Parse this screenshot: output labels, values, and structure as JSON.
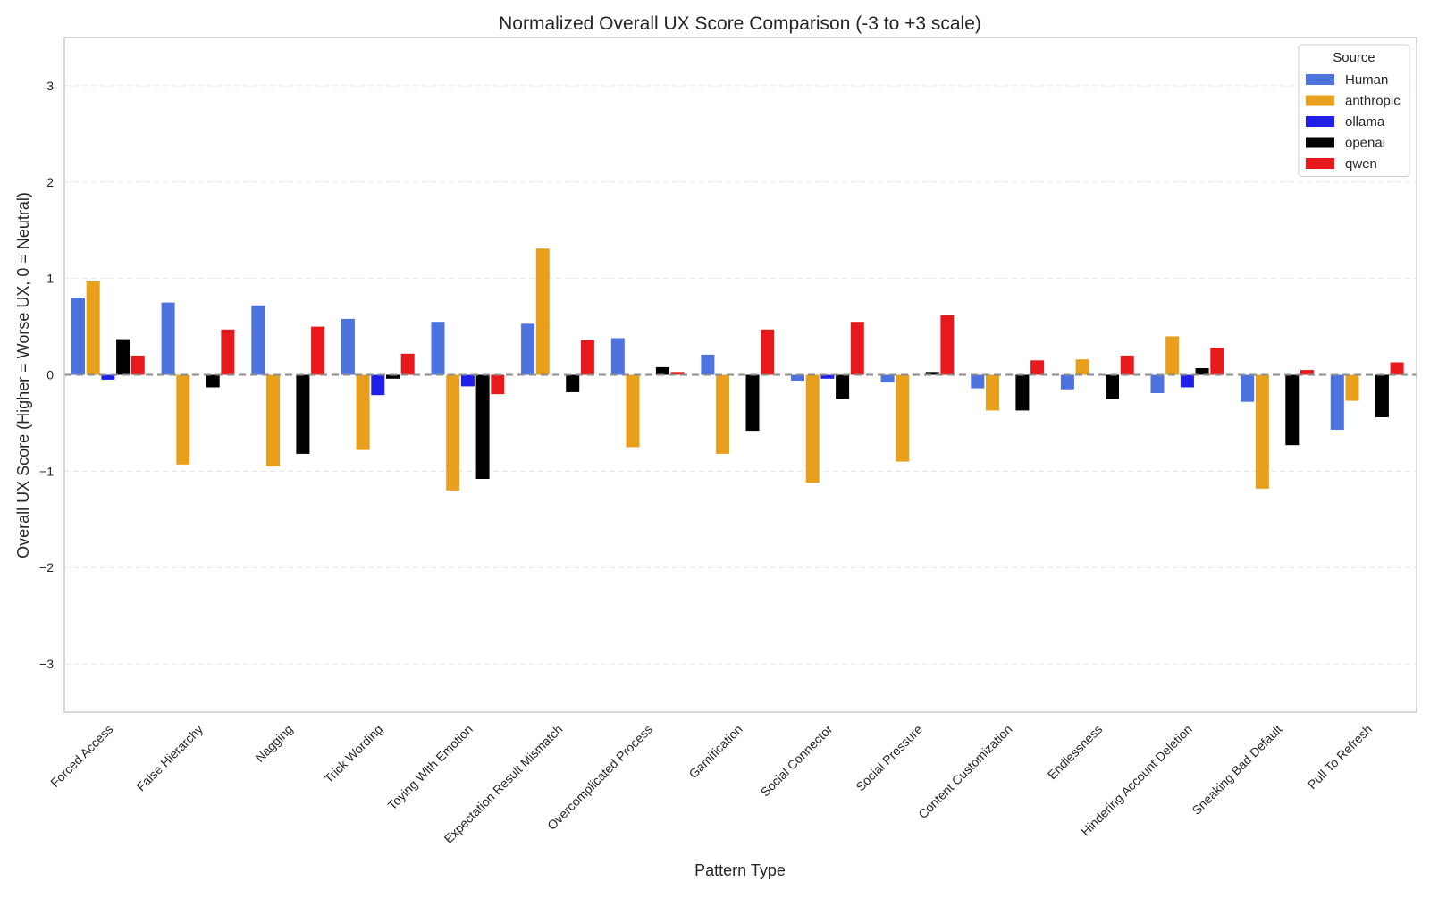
{
  "chart_data": {
    "type": "bar",
    "title": "Normalized Overall UX Score Comparison (-3 to +3 scale)",
    "xlabel": "Pattern Type",
    "ylabel": "Overall UX Score (Higher = Worse UX, 0 = Neutral)",
    "ylim": [
      -3.5,
      3.5
    ],
    "yticks": [
      -3,
      -2,
      -1,
      0,
      1,
      2,
      3
    ],
    "ytick_labels": [
      "−3",
      "−2",
      "−1",
      "0",
      "1",
      "2",
      "3"
    ],
    "grid": true,
    "reference_line": 0,
    "legend": {
      "title": "Source",
      "placement": "top-right"
    },
    "categories": [
      "Forced Access",
      "False Hierarchy",
      "Nagging",
      "Trick Wording",
      "Toying With Emotion",
      "Expectation Result Mismatch",
      "Overcomplicated Process",
      "Gamification",
      "Social Connector",
      "Social Pressure",
      "Content Customization",
      "Endlessness",
      "Hindering Account Deletion",
      "Sneaking Bad Default",
      "Pull To Refresh"
    ],
    "series": [
      {
        "name": "Human",
        "color": "#4e73df",
        "values": [
          0.8,
          0.75,
          0.72,
          0.58,
          0.55,
          0.53,
          0.38,
          0.21,
          -0.06,
          -0.08,
          -0.14,
          -0.15,
          -0.19,
          -0.28,
          -0.57
        ]
      },
      {
        "name": "anthropic",
        "color": "#e89f1c",
        "values": [
          0.97,
          -0.93,
          -0.95,
          -0.78,
          -1.2,
          1.31,
          -0.75,
          -0.82,
          -1.12,
          -0.9,
          -0.37,
          0.16,
          0.4,
          -1.18,
          -0.27
        ]
      },
      {
        "name": "ollama",
        "color": "#1f1fe8",
        "values": [
          -0.05,
          0.0,
          0.0,
          -0.21,
          -0.12,
          0.0,
          0.0,
          0.0,
          -0.04,
          0.0,
          0.0,
          0.0,
          -0.13,
          0.0,
          0.0
        ]
      },
      {
        "name": "openai",
        "color": "#000000",
        "values": [
          0.37,
          -0.13,
          -0.82,
          -0.04,
          -1.08,
          -0.18,
          0.08,
          -0.58,
          -0.25,
          0.03,
          -0.37,
          -0.25,
          0.07,
          -0.73,
          -0.44
        ]
      },
      {
        "name": "qwen",
        "color": "#e8191c",
        "values": [
          0.2,
          0.47,
          0.5,
          0.22,
          -0.2,
          0.36,
          0.03,
          0.47,
          0.55,
          0.62,
          0.15,
          0.2,
          0.28,
          0.05,
          0.13
        ]
      }
    ]
  }
}
